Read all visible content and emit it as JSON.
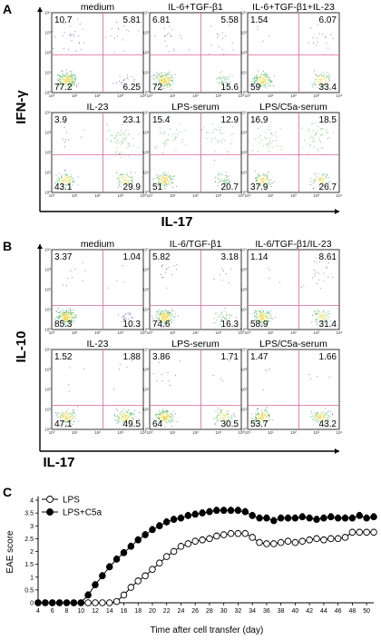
{
  "panels": {
    "A": {
      "letter": "A",
      "y_label": "IFN-γ",
      "x_label": "IL-17",
      "plots": [
        {
          "title": "medium",
          "ul": "10.7",
          "ur": "5.81",
          "ll": "77.2",
          "lr": "6.25"
        },
        {
          "title": "IL-6+TGF-β1",
          "ul": "6.81",
          "ur": "5.58",
          "ll": "72",
          "lr": "15.6"
        },
        {
          "title": "IL-6+TGF-β1+IL-23",
          "ul": "1.54",
          "ur": "6.07",
          "ll": "59",
          "lr": "33.4"
        },
        {
          "title": "IL-23",
          "ul": "3.9",
          "ur": "23.1",
          "ll": "43.1",
          "lr": "29.9"
        },
        {
          "title": "LPS-serum",
          "ul": "15.4",
          "ur": "12.9",
          "ll": "51",
          "lr": "20.7"
        },
        {
          "title": "LPS/C5a-serum",
          "ul": "16.9",
          "ur": "18.5",
          "ll": "37.9",
          "lr": "26.7"
        }
      ]
    },
    "B": {
      "letter": "B",
      "y_label": "IL-10",
      "x_label": "IL-17",
      "plots": [
        {
          "title": "medium",
          "ul": "3.37",
          "ur": "1.04",
          "ll": "85.3",
          "lr": "10.3"
        },
        {
          "title": "IL-6/TGF-β1",
          "ul": "5.82",
          "ur": "3.18",
          "ll": "74.6",
          "lr": "16.3"
        },
        {
          "title": "IL-6/TGF-β1/IL-23",
          "ul": "1.14",
          "ur": "8.61",
          "ll": "58.9",
          "lr": "31.4"
        },
        {
          "title": "IL-23",
          "ul": "1.52",
          "ur": "1.88",
          "ll": "47.1",
          "lr": "49.5"
        },
        {
          "title": "LPS-serum",
          "ul": "3.86",
          "ur": "1.71",
          "ll": "64",
          "lr": "30.5"
        },
        {
          "title": "LPS/C5a-serum",
          "ul": "1.47",
          "ur": "1.66",
          "ll": "53.7",
          "lr": "43.2"
        }
      ]
    }
  },
  "facs_ticks": [
    "10⁰",
    "10¹",
    "10²",
    "10³",
    "10⁴"
  ],
  "colors": {
    "quadrant_line": "#d9669a",
    "dot_low": "#3a3f9e",
    "dot_high": "#e6d23a",
    "dot_mid": "#3aa64a"
  },
  "chart_data": {
    "type": "line",
    "letter": "C",
    "xlabel": "Time after cell transfer (day)",
    "ylabel": "EAE score",
    "xlim": [
      4,
      51
    ],
    "ylim": [
      0,
      4
    ],
    "x_ticks": [
      4,
      6,
      8,
      10,
      12,
      14,
      16,
      18,
      20,
      22,
      24,
      26,
      28,
      30,
      32,
      34,
      36,
      38,
      40,
      42,
      44,
      46,
      48,
      50
    ],
    "y_ticks": [
      "0",
      "0.5",
      "1",
      "1.5",
      "2",
      "2.5",
      "3",
      "3.5",
      "4"
    ],
    "x": [
      4,
      5,
      6,
      7,
      8,
      9,
      10,
      11,
      12,
      13,
      14,
      15,
      16,
      17,
      18,
      19,
      20,
      21,
      22,
      23,
      24,
      25,
      26,
      27,
      28,
      29,
      30,
      31,
      32,
      33,
      34,
      35,
      36,
      37,
      38,
      39,
      40,
      41,
      42,
      43,
      44,
      45,
      46,
      47,
      48,
      49,
      50,
      51
    ],
    "series": [
      {
        "name": "LPS",
        "marker": "open",
        "values": [
          0,
          0,
          0,
          0,
          0,
          0,
          0,
          0,
          0,
          0,
          0,
          0.05,
          0.3,
          0.6,
          0.85,
          1.05,
          1.3,
          1.55,
          1.8,
          2.0,
          2.2,
          2.3,
          2.4,
          2.45,
          2.5,
          2.6,
          2.65,
          2.7,
          2.7,
          2.7,
          2.55,
          2.35,
          2.3,
          2.3,
          2.35,
          2.4,
          2.35,
          2.4,
          2.45,
          2.5,
          2.45,
          2.5,
          2.5,
          2.55,
          2.75,
          2.75,
          2.75,
          2.75
        ]
      },
      {
        "name": "LPS+C5a",
        "marker": "filled",
        "values": [
          0,
          0,
          0,
          0,
          0,
          0,
          0,
          0.3,
          0.7,
          1.05,
          1.4,
          1.7,
          1.95,
          2.2,
          2.45,
          2.65,
          2.85,
          3.0,
          3.15,
          3.25,
          3.3,
          3.4,
          3.45,
          3.5,
          3.55,
          3.6,
          3.6,
          3.6,
          3.6,
          3.55,
          3.4,
          3.3,
          3.3,
          3.2,
          3.3,
          3.3,
          3.3,
          3.35,
          3.3,
          3.25,
          3.3,
          3.35,
          3.3,
          3.3,
          3.3,
          3.4,
          3.3,
          3.35
        ]
      }
    ],
    "legend": {
      "position": "top-left",
      "entries": [
        "LPS",
        "LPS+C5a"
      ]
    }
  }
}
